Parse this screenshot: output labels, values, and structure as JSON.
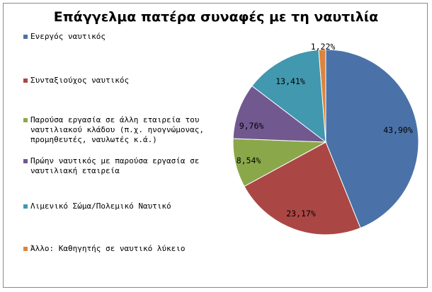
{
  "chart_data": {
    "type": "pie",
    "title": "Επάγγελμα πατέρα συναφές με τη ναυτιλία",
    "legend_position": "left",
    "categories": [
      "Ενεργός ναυτικός",
      "Συνταξιούχος ναυτικός",
      "Παρούσα εργασία σε άλλη εταιρεία του ναυτιλιακού κλάδου (π.χ. ηνογνώμονας, προμηθευτές, ναυλωτές κ.ά.)",
      "Πρώην ναυτικός με παρούσα εργασία σε ναυτιλιακή εταιρεία",
      "Λιμενικό Σώμα/Πολεμικό Ναυτικό",
      "Άλλο: Καθηγητής σε ναυτικό λύκειο"
    ],
    "values": [
      43.9,
      23.17,
      8.54,
      9.76,
      13.41,
      1.22
    ],
    "value_labels": [
      "43,90%",
      "23,17%",
      "8,54%",
      "9,76%",
      "13,41%",
      "1,22%"
    ],
    "colors": [
      "#4a72a8",
      "#aa4744",
      "#8aa84a",
      "#71588f",
      "#4198af",
      "#db843d"
    ]
  }
}
